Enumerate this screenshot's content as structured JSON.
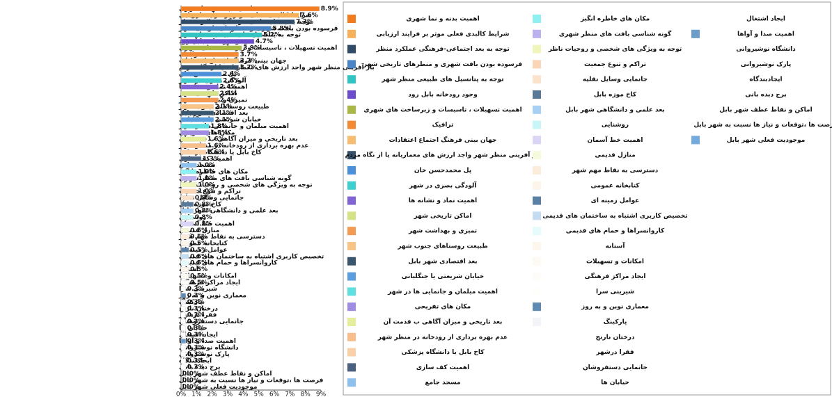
{
  "chart_data": {
    "type": "bar",
    "orientation": "horizontal",
    "categories": [
      "اهمیت بدنه و نما شهری",
      "شرایط کالبدی فعلی موثر بر فرایند ارزیابی",
      "توجه به بعد اجتماعی-فرهنگی عملکرد منظر",
      "فرسوده بودن بافت شهری و منظرهای تاریخی شهر",
      "توجه به پتانسیل های طبیعی منظر شهر",
      "وجود رودخانه بابل رود",
      "اهمیت تسهیلات ، تاسیسات و زیرساخت های شهری",
      "ترافیک",
      "جهان بینی فرهنگ اجتماع اعتقادات",
      "باز آفرینی منظر شهر واجد ارزش های معماریانه یا از نگاه مردم",
      "پل محمدحسن خان",
      "آلودگی بصری در شهر",
      "اهمیت نماد و نشانه ها",
      "اماکن تاریخی شهر",
      "تمیزی و بهداشت شهر",
      "طبیعت روستاهای جنوب شهر",
      "بعد اقتصادی شهر بابل",
      "خیابان شریعتی یا جنگلبانی",
      "اهمیت مبلمان و جانمایی ها در شهر",
      "مکان های تفریحی",
      "بعد تاریخی و میزان آگاهی ب قدمت آن",
      "عدم بهره برداری از رودخانه در منظر شهر",
      "کاخ بابل یا دانشگاه پزشکی",
      "اهمیت کف سازی",
      "مسجد جامع",
      "مکان های خاطره انگیز",
      "گونه شناسی بافت های منظر شهری",
      "توجه به ویژگی های شخصی و روحیات ناظر",
      "تراکم و تنوع جمعیت",
      "جانمایی وسایل نقلیه",
      "کاخ موزه بابل",
      "بعد علمی و دانشگاهی شهر بابل",
      "روشنایی",
      "اهمیت خط آسمان",
      "منازل قدیمی",
      "دسترسی به نقاط مهم شهر",
      "کتابخانه عمومی",
      "عوامل زمینه ای",
      "تخصیص کاربری اشتباه به ساختمان های قدیمی",
      "کاروانسراها و حمام های قدیمی",
      "آستانه",
      "امکانات و تسهیلات",
      "ایجاد مراکز فرهنگی",
      "شیرینی سرا",
      "معماری نوین و به روز",
      "پارکینگ",
      "درختان نارنج",
      "فقرا درشهر",
      "جانمایی دستفروشان",
      "خیابان ها",
      "ایجاد اشتغال",
      "اهمیت صدا و آواها",
      "دانشگاه نوشیروانی",
      "پارک نوشیروانی",
      "ایجادبندگاه",
      "برج دیده بانی",
      "اماکن و نقاط عطف شهر بابل",
      "فرصت ها ،توقعات و نیاز ها نسبت به شهر بابل",
      "موجودیت فعلی شهر بابل"
    ],
    "values": [
      8.9,
      7.6,
      7.3,
      5.8,
      5.2,
      4.7,
      3.9,
      3.7,
      3.7,
      3.7,
      2.6,
      2.6,
      2.4,
      2.4,
      2.4,
      2.1,
      2.1,
      2.1,
      1.8,
      1.8,
      1.6,
      1.6,
      1.6,
      1.3,
      1.0,
      1.0,
      1.0,
      1.0,
      1.0,
      0.8,
      0.8,
      0.8,
      0.8,
      0.8,
      0.5,
      0.5,
      0.5,
      0.5,
      0.5,
      0.5,
      0.5,
      0.5,
      0.5,
      0.3,
      0.3,
      0.3,
      0.3,
      0.3,
      0.3,
      0.3,
      0.3,
      0.3,
      0.3,
      0.3,
      0.3,
      0.3,
      0.0,
      0.0,
      0.0
    ],
    "value_labels": [
      "8.9%",
      "7.6%",
      "7.3%",
      "5.8%",
      "5.2%",
      "4.7%",
      "3.9%",
      "3.7%",
      "3.7%",
      "3.7%",
      "2.6%",
      "2.6%",
      "2.4%",
      "2.4%",
      "2.4%",
      "2.1%",
      "2.1%",
      "2.1%",
      "1.8%",
      "1.8%",
      "1.6%",
      "1.6%",
      "1.6%",
      "1.3%",
      "1.0%",
      "1.0%",
      "1.0%",
      "1.0%",
      "1.0%",
      "0.8%",
      "0.8%",
      "0.8%",
      "0.8%",
      "0.8%",
      "0.5%",
      "0.5%",
      "0.5%",
      "0.5%",
      "0.5%",
      "0.5%",
      "0.5%",
      "0.5%",
      "0.5%",
      "0.3%",
      "0.3%",
      "0.3%",
      "0.3%",
      "0.3%",
      "0.3%",
      "0.3%",
      "0.3%",
      "0.3%",
      "0.3%",
      "0.3%",
      "0.3%",
      "0.3%",
      "0.0%",
      "0.0%",
      "0.0%"
    ],
    "colors": [
      "#f47c20",
      "#f6b15a",
      "#2f4b68",
      "#4a85c6",
      "#32c3c3",
      "#6a4ccc",
      "#aab848",
      "#f48a34",
      "#f7bd72",
      "#36506a",
      "#4b90d8",
      "#3fcfcf",
      "#8064d4",
      "#d6e288",
      "#f59a52",
      "#f8c586",
      "#3a566f",
      "#5a9ee0",
      "#5ee0e0",
      "#a08ce2",
      "#e6ee9c",
      "#f8bf8c",
      "#fad0a8",
      "#4a6280",
      "#8ec0ee",
      "#8ef0f0",
      "#bcb0ee",
      "#f0f5bc",
      "#fad6b6",
      "#fbe2cc",
      "#5a7898",
      "#a8d0f4",
      "#c8f6f6",
      "#dcd4f6",
      "#f6f9dc",
      "#fcecdc",
      "#fdf4ea",
      "#5b80a6",
      "#c4dcf2",
      "#e6fcfc",
      "#fcf6ec",
      "#fdfaf4",
      "#fefcf8",
      "#fefefa",
      "#5e8ab4",
      "#f2f4fa",
      "#ffffff",
      "#ffffff",
      "#ffffff",
      "#ffffff",
      "#ffffff",
      "#6c9cc8",
      "#ffffff",
      "#ffffff",
      "#ffffff",
      "#ffffff",
      "#ffffff",
      "#ffffff",
      "#74aade"
    ],
    "xlim": [
      0,
      9
    ],
    "xticks": [
      {
        "value": 0,
        "label": "0%"
      },
      {
        "value": 1,
        "label": "1%"
      },
      {
        "value": 2,
        "label": "2%"
      },
      {
        "value": 3,
        "label": "3%"
      },
      {
        "value": 4,
        "label": "4%"
      },
      {
        "value": 5,
        "label": "5%"
      },
      {
        "value": 6,
        "label": "6%"
      },
      {
        "value": 7,
        "label": "7%"
      },
      {
        "value": 8,
        "label": "8%"
      },
      {
        "value": 9,
        "label": "9%"
      }
    ],
    "grid": false,
    "legend": "right"
  }
}
